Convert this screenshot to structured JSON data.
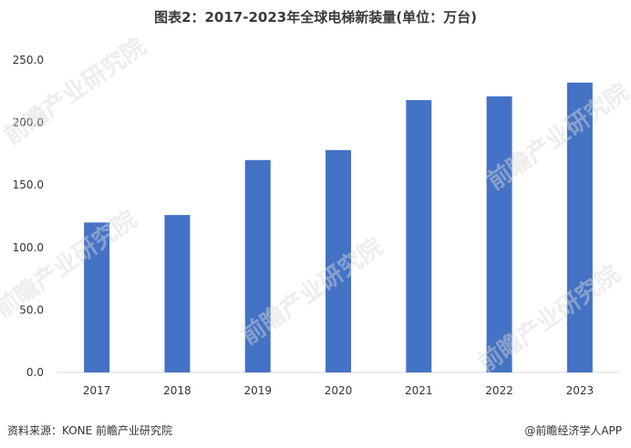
{
  "title": "图表2：2017-2023年全球电梯新装量(单位：万台)",
  "source": "资料来源：KONE 前瞻产业研究院",
  "app_credit": "@前瞻经济学人APP",
  "watermark": "前瞻产业研究院",
  "colors": {
    "bar": "#4472C4",
    "axis": "#d9d9d9",
    "text": "#333333"
  },
  "chart_data": {
    "type": "bar",
    "title": "图表2：2017-2023年全球电梯新装量(单位：万台)",
    "xlabel": "",
    "ylabel": "",
    "categories": [
      "2017",
      "2018",
      "2019",
      "2020",
      "2021",
      "2022",
      "2023"
    ],
    "values": [
      120,
      126,
      170,
      178,
      218,
      221,
      232
    ],
    "ylim": [
      0,
      250
    ],
    "yticks": [
      "0.0",
      "50.0",
      "100.0",
      "150.0",
      "200.0",
      "250.0"
    ],
    "grid": false,
    "legend": "none"
  }
}
